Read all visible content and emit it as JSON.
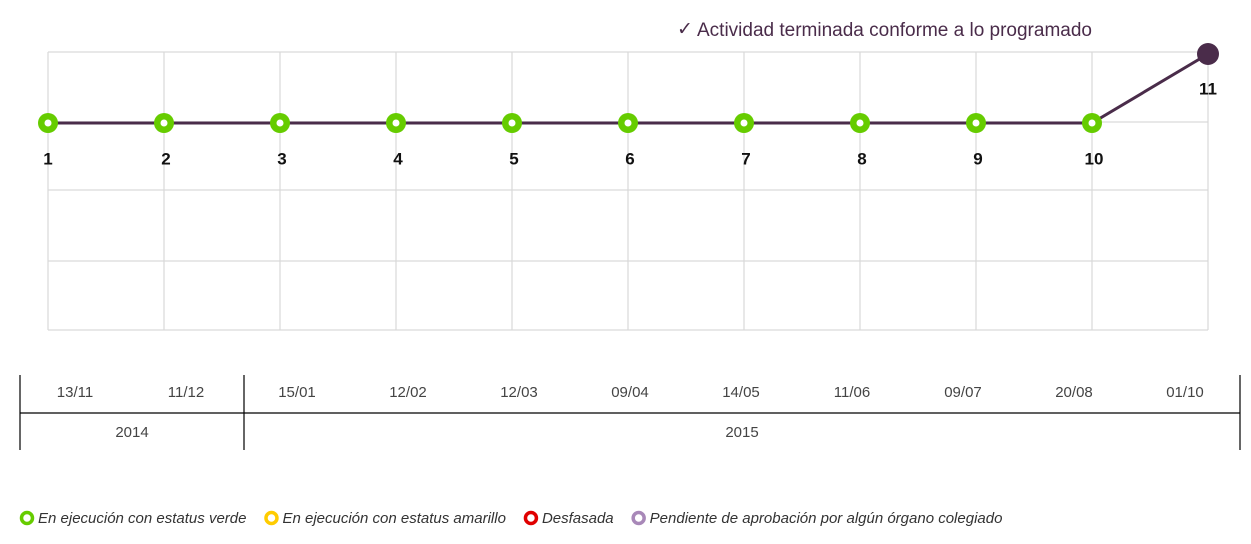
{
  "annotation": "Actividad terminada conforme a lo programado",
  "milestones": [
    {
      "label": "1",
      "date": "13/11"
    },
    {
      "label": "2",
      "date": "11/12"
    },
    {
      "label": "3",
      "date": "15/01"
    },
    {
      "label": "4",
      "date": "12/02"
    },
    {
      "label": "5",
      "date": "12/03"
    },
    {
      "label": "6",
      "date": "09/04"
    },
    {
      "label": "7",
      "date": "14/05"
    },
    {
      "label": "8",
      "date": "11/06"
    },
    {
      "label": "9",
      "date": "09/07"
    },
    {
      "label": "10",
      "date": "20/08"
    },
    {
      "label": "11",
      "date": "01/10"
    }
  ],
  "years": [
    "2014",
    "2015"
  ],
  "legend": [
    {
      "label": "En ejecución con estatus verde",
      "color": "#66cc00"
    },
    {
      "label": "En ejecución con estatus amarillo",
      "color": "#ffcc00"
    },
    {
      "label": "Desfasada",
      "color": "#e00000"
    },
    {
      "label": "Pendiente de aprobación por algún órgano colegiado",
      "color": "#a888b8"
    }
  ]
}
